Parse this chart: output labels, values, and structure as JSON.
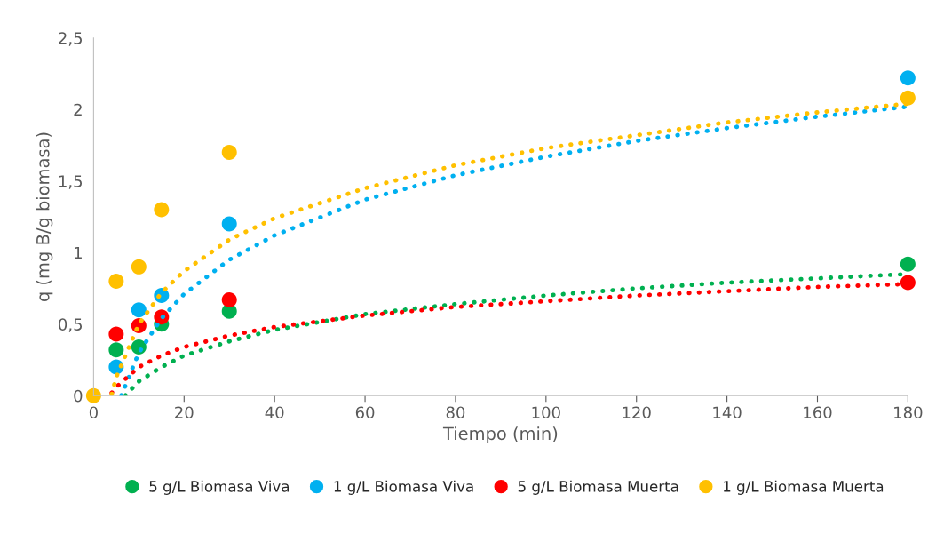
{
  "chart_data": {
    "type": "scatter",
    "xlabel": "Tiempo (min)",
    "ylabel": "q (mg B/g biomasa)",
    "x": [
      0,
      5,
      10,
      15,
      30,
      180
    ],
    "xlim": [
      0,
      180
    ],
    "xticks": [
      0,
      20,
      40,
      60,
      80,
      100,
      120,
      140,
      160,
      180
    ],
    "ylim": [
      0,
      2.5
    ],
    "yticks": [
      {
        "value": 0,
        "label": "0"
      },
      {
        "value": 0.5,
        "label": "0,5"
      },
      {
        "value": 1,
        "label": "1"
      },
      {
        "value": 1.5,
        "label": "1,5"
      },
      {
        "value": 2,
        "label": "2"
      },
      {
        "value": 2.5,
        "label": "2,5"
      }
    ],
    "grid": false,
    "legend": "bottom",
    "marker": "circle",
    "series": [
      {
        "name": "5 g/L Biomasa Viva",
        "color": "#00b050",
        "values": [
          null,
          0.32,
          0.34,
          0.5,
          0.59,
          0.92
        ]
      },
      {
        "name": "1 g/L Biomasa Viva",
        "color": "#00b0f0",
        "values": [
          null,
          0.2,
          0.6,
          0.7,
          1.2,
          2.22
        ]
      },
      {
        "name": "5 g/L Biomasa Muerta",
        "color": "#ff0000",
        "values": [
          null,
          0.43,
          0.49,
          0.55,
          0.67,
          0.79
        ]
      },
      {
        "name": "1 g/L Biomasa Muerta",
        "color": "#ffc000",
        "values": [
          0,
          0.8,
          0.9,
          1.3,
          1.7,
          2.08
        ]
      },
      {
        "type": "line",
        "line_style": "dotted",
        "marker": "none",
        "color": "#00b050",
        "x": [
          7,
          10,
          15,
          20,
          30,
          40,
          60,
          80,
          100,
          120,
          140,
          160,
          180
        ],
        "values": [
          0.0,
          0.1,
          0.2,
          0.28,
          0.38,
          0.46,
          0.57,
          0.64,
          0.7,
          0.75,
          0.79,
          0.82,
          0.85
        ]
      },
      {
        "type": "line",
        "line_style": "dotted",
        "marker": "none",
        "color": "#00b0f0",
        "x": [
          6.1,
          10,
          15,
          20,
          30,
          40,
          60,
          80,
          100,
          120,
          140,
          160,
          180
        ],
        "values": [
          0.0,
          0.3,
          0.54,
          0.71,
          0.95,
          1.12,
          1.37,
          1.54,
          1.67,
          1.78,
          1.87,
          1.95,
          2.02
        ]
      },
      {
        "type": "line",
        "line_style": "dotted",
        "marker": "none",
        "color": "#ff0000",
        "x": [
          4,
          5,
          10,
          15,
          20,
          30,
          40,
          60,
          80,
          100,
          120,
          140,
          160,
          180
        ],
        "values": [
          0.02,
          0.06,
          0.2,
          0.28,
          0.34,
          0.42,
          0.48,
          0.56,
          0.62,
          0.66,
          0.7,
          0.73,
          0.76,
          0.78
        ]
      },
      {
        "type": "line",
        "line_style": "dotted",
        "marker": "none",
        "color": "#ffc000",
        "x": [
          4,
          5,
          10,
          15,
          20,
          30,
          40,
          60,
          80,
          100,
          120,
          140,
          160,
          180
        ],
        "values": [
          0.01,
          0.13,
          0.5,
          0.72,
          0.87,
          1.09,
          1.24,
          1.45,
          1.61,
          1.73,
          1.82,
          1.91,
          1.98,
          2.04
        ]
      }
    ]
  }
}
